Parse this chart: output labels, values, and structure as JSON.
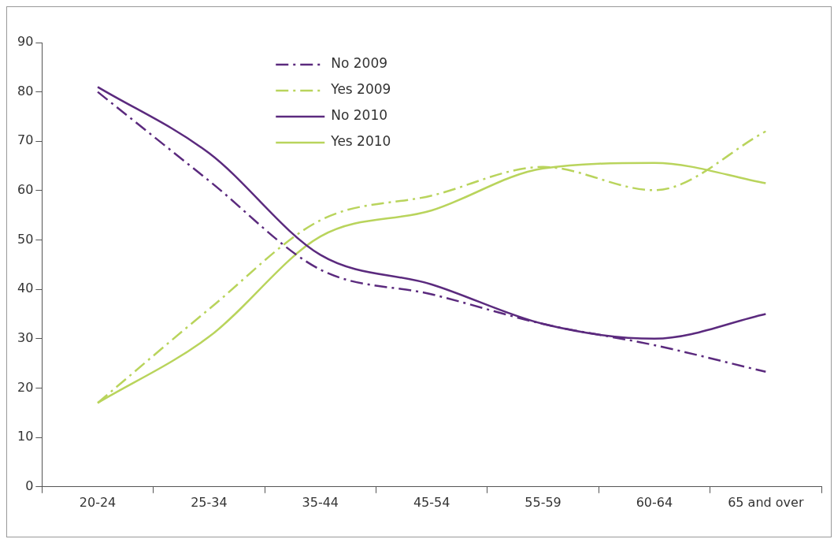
{
  "chart_data": {
    "type": "line",
    "categories": [
      "20-24",
      "25-34",
      "35-44",
      "45-54",
      "55-59",
      "60-64",
      "65 and over"
    ],
    "series": [
      {
        "name": "No 2009",
        "color": "#5b2a7e",
        "line_style": "dashdot",
        "values": [
          80,
          62,
          44,
          39,
          33,
          28.7,
          23.3
        ]
      },
      {
        "name": "Yes 2009",
        "color": "#b9d45c",
        "line_style": "dashdot",
        "values": [
          17,
          36,
          54,
          59,
          64.8,
          60.1,
          72
        ]
      },
      {
        "name": "No 2010",
        "color": "#5b2a7e",
        "line_style": "solid",
        "values": [
          81,
          67.6,
          47,
          41,
          33,
          30,
          35
        ]
      },
      {
        "name": "Yes 2010",
        "color": "#b9d45c",
        "line_style": "solid",
        "values": [
          17,
          30.4,
          50.7,
          56,
          64.5,
          65.6,
          61.5
        ]
      }
    ],
    "ylim": [
      0,
      90
    ],
    "yticks": [
      0,
      10,
      20,
      30,
      40,
      50,
      60,
      70,
      80,
      90
    ],
    "grid": false,
    "legend": "top left",
    "marker": "none"
  }
}
